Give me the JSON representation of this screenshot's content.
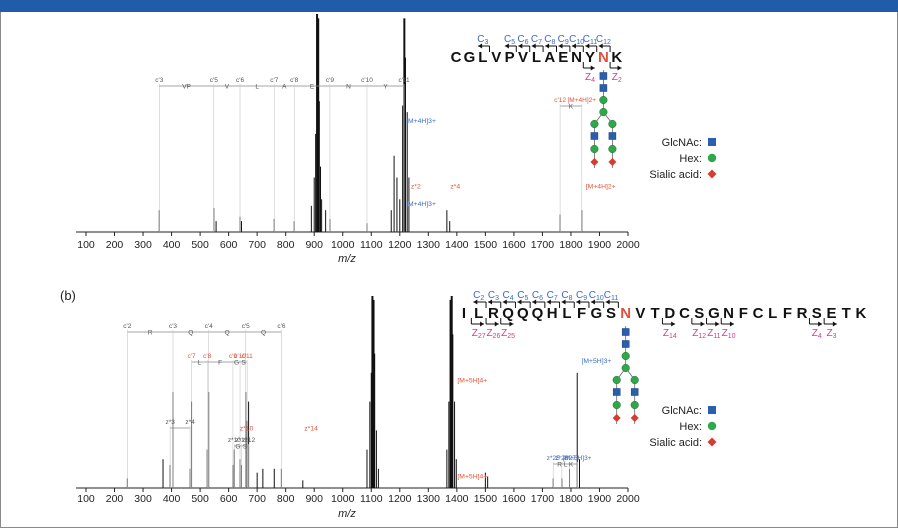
{
  "charts": [
    {
      "panel_label": "",
      "x_label": "m/z",
      "x_ticks": [
        100,
        200,
        300,
        400,
        500,
        600,
        700,
        800,
        900,
        1000,
        1100,
        1200,
        1300,
        1400,
        1500,
        1600,
        1700,
        1800,
        1900,
        2000
      ],
      "peptide": [
        "C",
        "G",
        "L",
        "V",
        "P",
        "V",
        "L",
        "A",
        "E",
        "N",
        "Y",
        "N",
        "K"
      ],
      "glyco_site_index": 11,
      "c_ions": [
        {
          "label": "C",
          "sub": "3",
          "at": 2
        },
        {
          "label": "C",
          "sub": "5",
          "at": 4
        },
        {
          "label": "C",
          "sub": "6",
          "at": 5
        },
        {
          "label": "C",
          "sub": "7",
          "at": 6
        },
        {
          "label": "C",
          "sub": "8",
          "at": 7
        },
        {
          "label": "C",
          "sub": "9",
          "at": 8
        },
        {
          "label": "C",
          "sub": "10",
          "at": 9
        },
        {
          "label": "C",
          "sub": "11",
          "at": 10
        },
        {
          "label": "C",
          "sub": "12",
          "at": 11
        }
      ],
      "z_ions": [
        {
          "label": "Z",
          "sub": "4",
          "at": 10
        },
        {
          "label": "Z",
          "sub": "2",
          "at": 12
        }
      ],
      "ladder_top": {
        "labels": [
          "c'3",
          "c'5",
          "c'6",
          "c'7",
          "c'8",
          "c'9",
          "c'10",
          "c'11"
        ],
        "positions": [
          357,
          548,
          640,
          760,
          830,
          955,
          1085,
          1215
        ],
        "residues": [
          "VP",
          "V",
          "L",
          "A",
          "E",
          "N",
          "Y"
        ]
      },
      "ladder_right": {
        "labels": [
          "c'12",
          "[M+4H]2+"
        ],
        "residue": "K",
        "positions": [
          1762,
          1838
        ]
      },
      "peaks": [
        [
          357,
          0.1
        ],
        [
          548,
          0.11
        ],
        [
          556,
          0.05
        ],
        [
          640,
          0.07
        ],
        [
          645,
          0.05
        ],
        [
          760,
          0.06
        ],
        [
          830,
          0.05
        ],
        [
          955,
          0.06
        ],
        [
          1085,
          0.04
        ],
        [
          890,
          0.12
        ],
        [
          900,
          0.25
        ],
        [
          905,
          0.45
        ],
        [
          910,
          1.0
        ],
        [
          914,
          0.98
        ],
        [
          918,
          0.6
        ],
        [
          922,
          0.3
        ],
        [
          926,
          0.15
        ],
        [
          940,
          0.1
        ],
        [
          1170,
          0.1
        ],
        [
          1180,
          0.35
        ],
        [
          1190,
          0.25
        ],
        [
          1200,
          0.15
        ],
        [
          1210,
          0.58
        ],
        [
          1216,
          0.98
        ],
        [
          1220,
          0.8
        ],
        [
          1226,
          0.55
        ],
        [
          1232,
          0.25
        ],
        [
          1365,
          0.1
        ],
        [
          1375,
          0.05
        ],
        [
          1762,
          0.08
        ],
        [
          1838,
          0.1
        ]
      ],
      "annotations": [
        {
          "text": "[M+4H]3+",
          "x": 1215,
          "y": 0.5,
          "color": "#3a6bc4"
        },
        {
          "text": "z*2",
          "x": 1232,
          "y": 0.2,
          "color": "#e0523a"
        },
        {
          "text": "[M+4H]3+",
          "x": 1215,
          "y": 0.12,
          "color": "#3a6bc4"
        },
        {
          "text": "z*4",
          "x": 1370,
          "y": 0.2,
          "color": "#e0523a"
        },
        {
          "text": "[M+4H]2+",
          "x": 1845,
          "y": 0.2,
          "color": "#e0523a"
        }
      ],
      "legend": [
        {
          "name": "GlcNAc:",
          "shape": "square",
          "color": "#2a5fb0"
        },
        {
          "name": "Hex:",
          "shape": "circle",
          "color": "#2fa84a"
        },
        {
          "name": "Sialic acid:",
          "shape": "diamond",
          "color": "#d63c30"
        }
      ]
    },
    {
      "panel_label": "(b)",
      "x_label": "m/z",
      "x_ticks": [
        100,
        200,
        300,
        400,
        500,
        600,
        700,
        800,
        900,
        1000,
        1100,
        1200,
        1300,
        1400,
        1500,
        1600,
        1700,
        1800,
        1900,
        2000
      ],
      "peptide": [
        "I",
        "L",
        "R",
        "Q",
        "Q",
        "Q",
        "H",
        "L",
        "F",
        "G",
        "S",
        "N",
        "V",
        "T",
        "D",
        "C",
        "S",
        "G",
        "N",
        "F",
        "C",
        "L",
        "F",
        "R",
        "S",
        "E",
        "T",
        "K"
      ],
      "glyco_site_index": 11,
      "c_ions": [
        {
          "label": "C",
          "sub": "2",
          "at": 1
        },
        {
          "label": "C",
          "sub": "3",
          "at": 2
        },
        {
          "label": "C",
          "sub": "4",
          "at": 3
        },
        {
          "label": "C",
          "sub": "5",
          "at": 4
        },
        {
          "label": "C",
          "sub": "6",
          "at": 5
        },
        {
          "label": "C",
          "sub": "7",
          "at": 6
        },
        {
          "label": "C",
          "sub": "8",
          "at": 7
        },
        {
          "label": "C",
          "sub": "9",
          "at": 8
        },
        {
          "label": "C",
          "sub": "10",
          "at": 9
        },
        {
          "label": "C",
          "sub": "11",
          "at": 10
        }
      ],
      "z_ions": [
        {
          "label": "Z",
          "sub": "27",
          "at": 1
        },
        {
          "label": "Z",
          "sub": "26",
          "at": 2
        },
        {
          "label": "Z",
          "sub": "25",
          "at": 3
        },
        {
          "label": "Z",
          "sub": "14",
          "at": 14
        },
        {
          "label": "Z",
          "sub": "12",
          "at": 16
        },
        {
          "label": "Z",
          "sub": "11",
          "at": 17
        },
        {
          "label": "Z",
          "sub": "10",
          "at": 18
        },
        {
          "label": "Z",
          "sub": "4",
          "at": 24
        },
        {
          "label": "Z",
          "sub": "3",
          "at": 25
        }
      ],
      "ladder_top": {
        "labels": [
          "c'2",
          "c'3",
          "c'4",
          "c'5",
          "c'6"
        ],
        "positions": [
          245,
          405,
          530,
          660,
          785
        ],
        "residues": [
          "R",
          "Q",
          "Q",
          "Q"
        ]
      },
      "ladder_mid": {
        "labels": [
          "c'7",
          "c'8",
          "c'9",
          "c'10",
          "c'11"
        ],
        "positions": [
          470,
          525,
          615,
          640,
          665
        ],
        "residues": [
          "L",
          "F",
          "G",
          "S"
        ]
      },
      "ladder_small": {
        "labels": [
          "z*10",
          "z*11",
          "z*12"
        ],
        "positions": [
          620,
          645,
          670
        ],
        "residues": [
          "G",
          "S"
        ]
      },
      "ladder_z": {
        "labels": [
          "z*3",
          "z*4"
        ],
        "positions": [
          395,
          465
        ]
      },
      "ladder_right": {
        "labels": [
          "z*25",
          "z*26",
          "z*27",
          "[M+5H]3+"
        ],
        "residue": "R L K",
        "positions": [
          1738,
          1768,
          1795,
          1822
        ]
      },
      "peaks": [
        [
          245,
          0.05
        ],
        [
          370,
          0.15
        ],
        [
          395,
          0.12
        ],
        [
          405,
          0.5
        ],
        [
          465,
          0.1
        ],
        [
          470,
          0.45
        ],
        [
          525,
          0.2
        ],
        [
          530,
          0.5
        ],
        [
          615,
          0.12
        ],
        [
          620,
          0.2
        ],
        [
          640,
          0.15
        ],
        [
          645,
          0.12
        ],
        [
          660,
          0.5
        ],
        [
          665,
          0.35
        ],
        [
          670,
          0.45
        ],
        [
          700,
          0.08
        ],
        [
          720,
          0.1
        ],
        [
          760,
          0.1
        ],
        [
          785,
          0.1
        ],
        [
          860,
          0.04
        ],
        [
          1085,
          0.2
        ],
        [
          1095,
          0.45
        ],
        [
          1100,
          0.6
        ],
        [
          1104,
          1.0
        ],
        [
          1108,
          0.98
        ],
        [
          1112,
          0.7
        ],
        [
          1118,
          0.3
        ],
        [
          1125,
          0.1
        ],
        [
          1365,
          0.2
        ],
        [
          1372,
          0.45
        ],
        [
          1378,
          0.98
        ],
        [
          1382,
          1.0
        ],
        [
          1386,
          0.8
        ],
        [
          1392,
          0.45
        ],
        [
          1398,
          0.15
        ],
        [
          1500,
          0.08
        ],
        [
          1508,
          0.06
        ],
        [
          1738,
          0.05
        ],
        [
          1768,
          0.05
        ],
        [
          1795,
          0.1
        ],
        [
          1822,
          0.6
        ],
        [
          1830,
          0.15
        ]
      ],
      "annotations": [
        {
          "text": "[M+5H]4+",
          "x": 1395,
          "y": 0.55,
          "color": "#e0523a"
        },
        {
          "text": "[M+5H]3+",
          "x": 1830,
          "y": 0.65,
          "color": "#3a6bc4"
        },
        {
          "text": "z*10",
          "x": 632,
          "y": 0.3,
          "color": "#e0523a"
        },
        {
          "text": "z*14",
          "x": 858,
          "y": 0.3,
          "color": "#e0523a"
        },
        {
          "text": "[M+5H]4+",
          "x": 1395,
          "y": 0.05,
          "color": "#e0523a"
        }
      ],
      "legend": [
        {
          "name": "GlcNAc:",
          "shape": "square",
          "color": "#2a5fb0"
        },
        {
          "name": "Hex:",
          "shape": "circle",
          "color": "#2fa84a"
        },
        {
          "name": "Sialic acid:",
          "shape": "diamond",
          "color": "#d63c30"
        }
      ]
    }
  ]
}
